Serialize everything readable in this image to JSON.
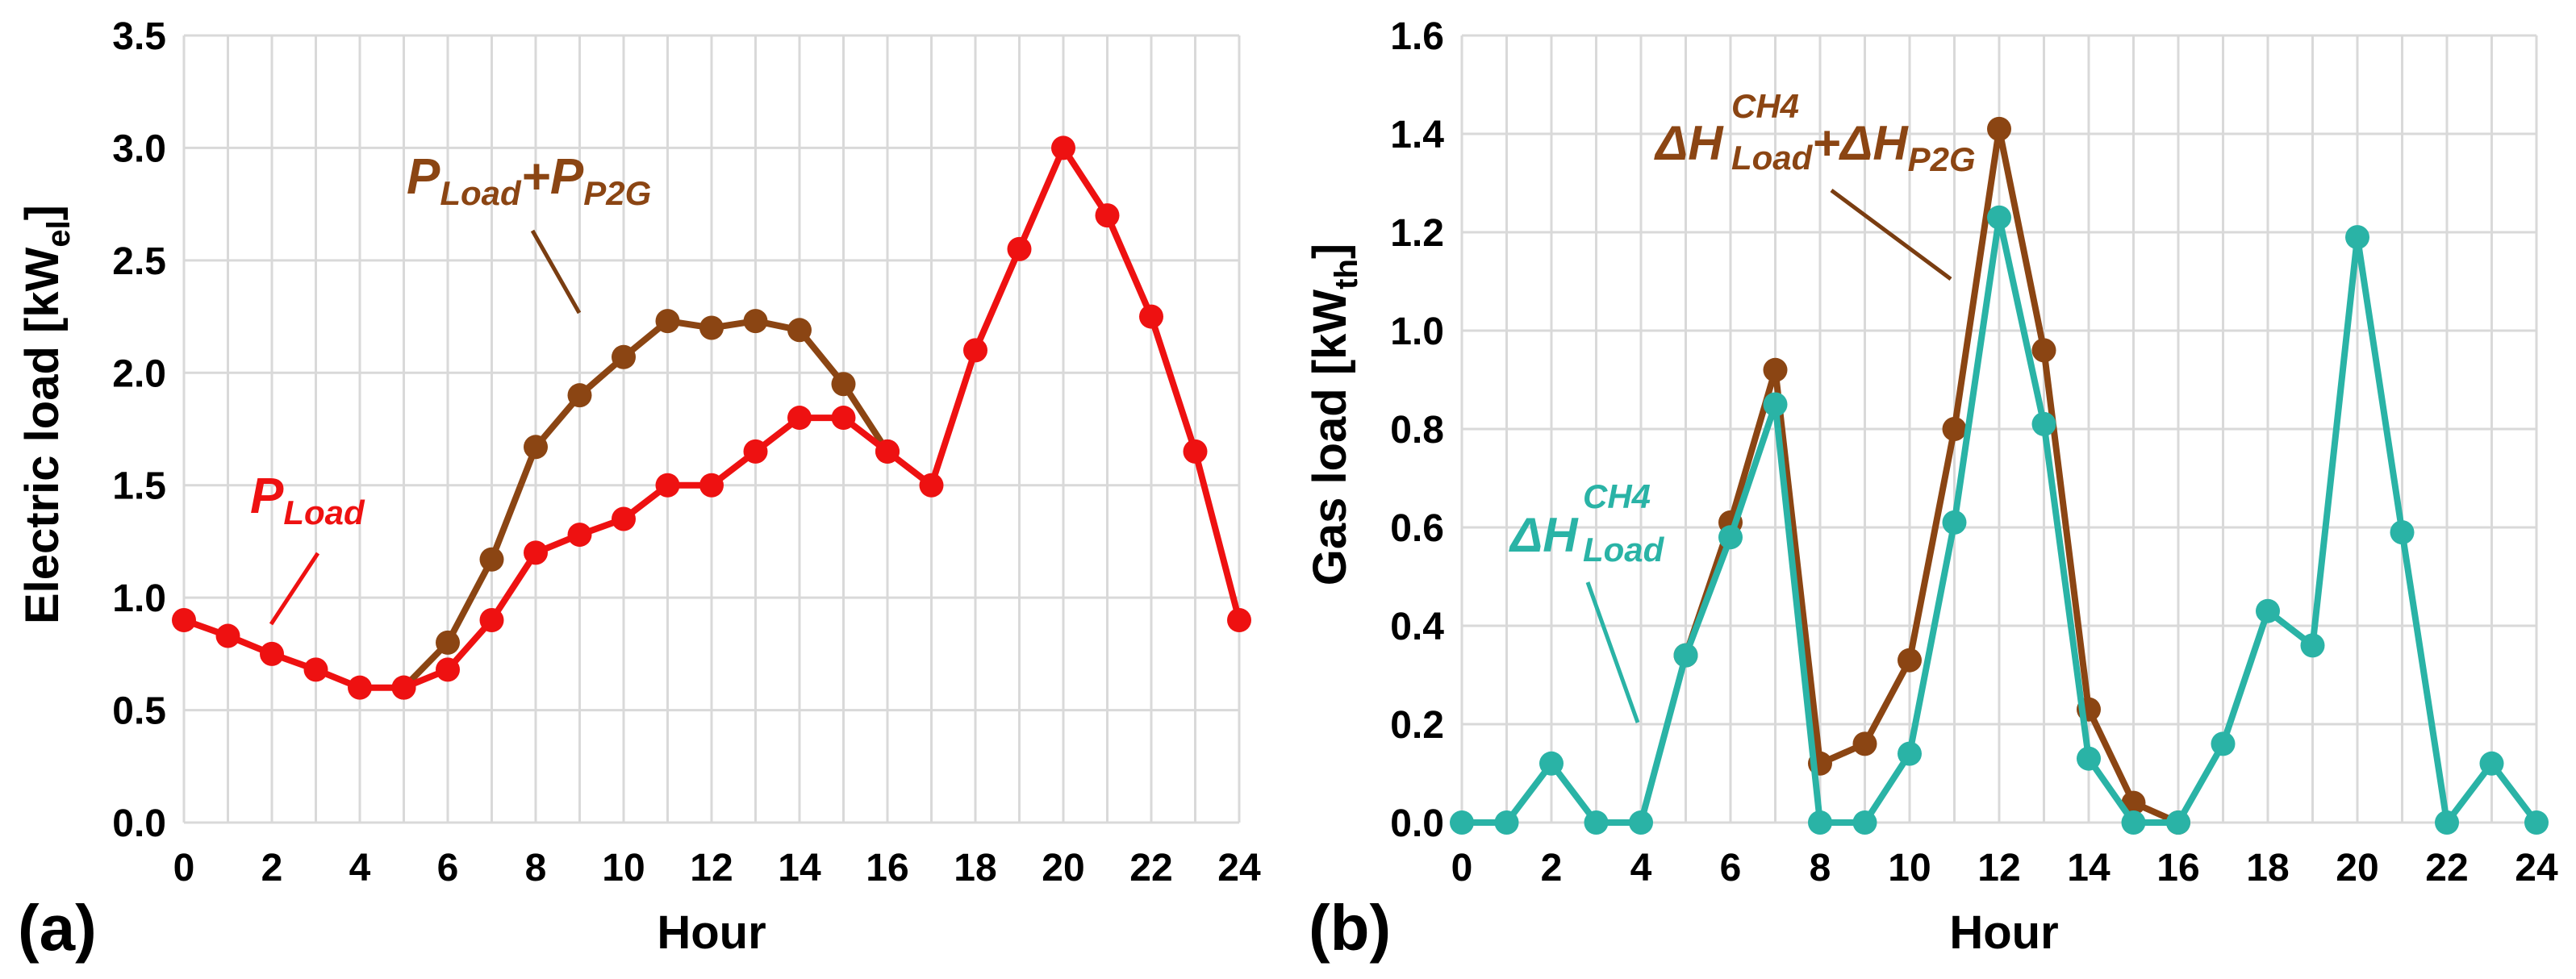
{
  "chart_data": [
    {
      "type": "line",
      "panel_label": "(a)",
      "xlabel": "Hour",
      "ylabel": "Electric load [kW",
      "ylabel_sub": "el",
      "ylabel_end": "]",
      "xlim": [
        0,
        24
      ],
      "ylim": [
        0,
        3.5
      ],
      "x_ticks": [
        "0",
        "2",
        "4",
        "6",
        "8",
        "10",
        "12",
        "14",
        "16",
        "18",
        "20",
        "22",
        "24"
      ],
      "y_ticks": [
        "0.0",
        "0.5",
        "1.0",
        "1.5",
        "2.0",
        "2.5",
        "3.0",
        "3.5"
      ],
      "grid": true,
      "series": [
        {
          "name": "P_Load+P_P2G",
          "color": "#8B4513",
          "x": [
            5,
            6,
            7,
            8,
            9,
            10,
            11,
            12,
            13,
            14,
            15,
            16
          ],
          "values": [
            0.6,
            0.8,
            1.17,
            1.67,
            1.9,
            2.07,
            2.23,
            2.2,
            2.23,
            2.19,
            1.95,
            1.65
          ]
        },
        {
          "name": "P_Load",
          "color": "#ee1111",
          "x": [
            0,
            1,
            2,
            3,
            4,
            5,
            6,
            7,
            8,
            9,
            10,
            11,
            12,
            13,
            14,
            15,
            16,
            17,
            18,
            19,
            20,
            21,
            22,
            23,
            24
          ],
          "values": [
            0.9,
            0.83,
            0.75,
            0.68,
            0.6,
            0.6,
            0.68,
            0.9,
            1.2,
            1.28,
            1.35,
            1.5,
            1.5,
            1.65,
            1.8,
            1.8,
            1.65,
            1.5,
            2.1,
            2.55,
            3.0,
            2.7,
            2.25,
            1.65,
            0.9
          ]
        }
      ],
      "annotations": [
        {
          "base": "P",
          "sub": "Load",
          "color": "#ee1111"
        },
        {
          "base": "P",
          "sub": "Load",
          "plus": "+",
          "base2": "P",
          "sub2": "P2G",
          "color": "#8B4513"
        }
      ]
    },
    {
      "type": "line",
      "panel_label": "(b)",
      "xlabel": "Hour",
      "ylabel": "Gas load [kW",
      "ylabel_sub": "th",
      "ylabel_end": "]",
      "xlim": [
        0,
        24
      ],
      "ylim": [
        0,
        1.6
      ],
      "x_ticks": [
        "0",
        "2",
        "4",
        "6",
        "8",
        "10",
        "12",
        "14",
        "16",
        "18",
        "20",
        "22",
        "24"
      ],
      "y_ticks": [
        "0.0",
        "0.2",
        "0.4",
        "0.6",
        "0.8",
        "1.0",
        "1.2",
        "1.4",
        "1.6"
      ],
      "grid": true,
      "series": [
        {
          "name": "ΔH_Load^CH4+ΔH_P2G",
          "color": "#8B4513",
          "x": [
            5,
            6,
            7,
            8,
            9,
            10,
            11,
            12,
            13,
            14,
            15,
            16
          ],
          "values": [
            0.34,
            0.61,
            0.92,
            0.12,
            0.16,
            0.33,
            0.8,
            1.41,
            0.96,
            0.23,
            0.04,
            0.0
          ]
        },
        {
          "name": "ΔH_Load^CH4",
          "color": "#2ab3a6",
          "x": [
            0,
            1,
            2,
            3,
            4,
            5,
            6,
            7,
            8,
            9,
            10,
            11,
            12,
            13,
            14,
            15,
            16,
            17,
            18,
            19,
            20,
            21,
            22,
            23,
            24
          ],
          "values": [
            0.0,
            0.0,
            0.12,
            0.0,
            0.0,
            0.34,
            0.58,
            0.85,
            0.0,
            0.0,
            0.14,
            0.61,
            1.23,
            0.81,
            0.13,
            0.0,
            0.0,
            0.16,
            0.43,
            0.36,
            1.19,
            0.59,
            0.0,
            0.12,
            0.0
          ]
        }
      ],
      "annotations": [
        {
          "base": "ΔH",
          "sup": "CH4",
          "sub": "Load",
          "color": "#2ab3a6"
        },
        {
          "base": "ΔH",
          "sup": "CH4",
          "sub": "Load",
          "plus": "+",
          "base2": "ΔH",
          "sub2": "P2G",
          "color": "#8B4513"
        }
      ]
    }
  ]
}
